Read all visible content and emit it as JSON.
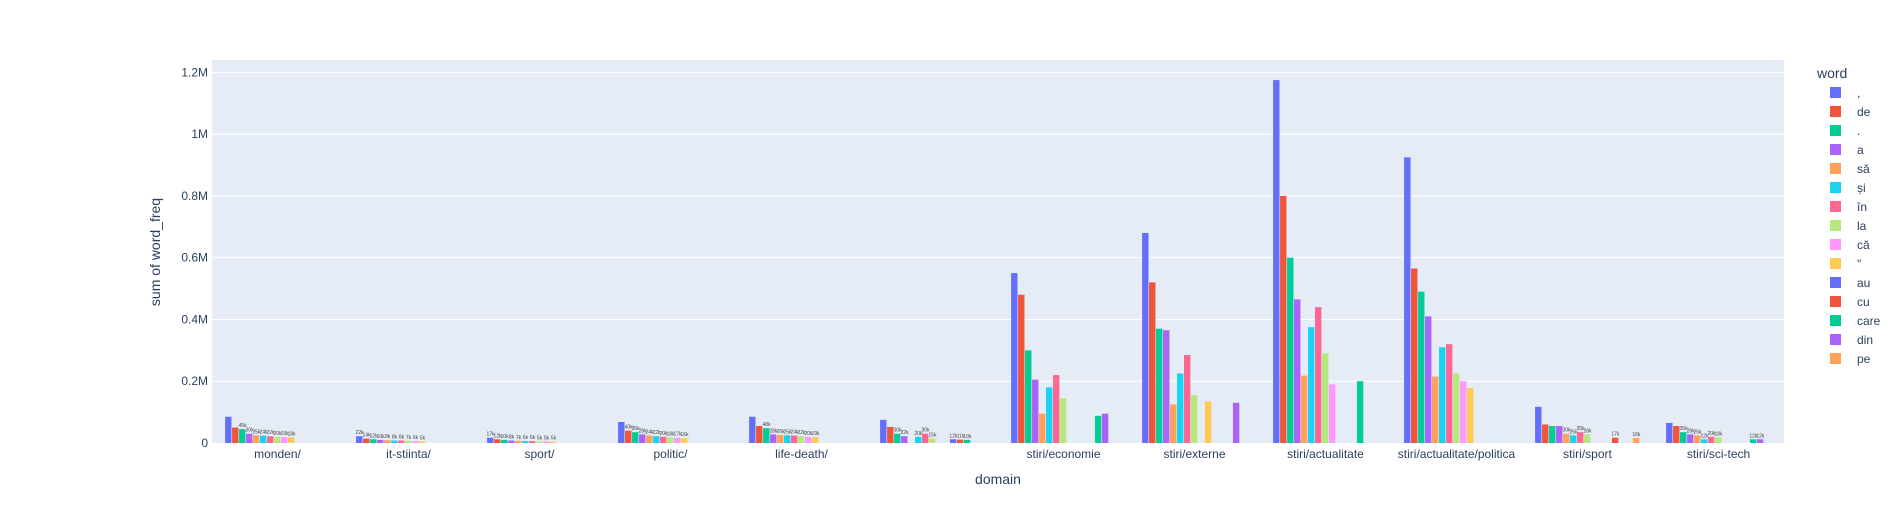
{
  "chart_data": {
    "type": "bar",
    "barmode": "group",
    "xlabel": "domain",
    "ylabel": "sum of word_freq",
    "ylim": [
      0,
      1240000
    ],
    "yticks": [
      {
        "value": 0,
        "label": "0"
      },
      {
        "value": 200000,
        "label": "0.2M"
      },
      {
        "value": 400000,
        "label": "0.4M"
      },
      {
        "value": 600000,
        "label": "0.6M"
      },
      {
        "value": 800000,
        "label": "0.8M"
      },
      {
        "value": 1000000,
        "label": "1M"
      },
      {
        "value": 1200000,
        "label": "1.2M"
      }
    ],
    "grid": true,
    "legend_title": "word",
    "legend_position": "right",
    "categories": [
      "monden/",
      "it-stiinta/",
      "sport/",
      "politic/",
      "life-death/",
      "",
      "stiri/economie",
      "stiri/externe",
      "stiri/actualitate",
      "stiri/actualitate/politica",
      "stiri/sport",
      "stiri/sci-tech"
    ],
    "series": [
      {
        "name": ",",
        "color": "#636efa",
        "values": [
          85000,
          22000,
          17000,
          68000,
          85000,
          75000,
          550000,
          680000,
          1175000,
          925000,
          117000,
          65000
        ]
      },
      {
        "name": "de",
        "color": "#EF553B",
        "values": [
          50000,
          14000,
          12000,
          40000,
          55000,
          52000,
          480000,
          520000,
          800000,
          565000,
          60000,
          55000
        ]
      },
      {
        "name": ".",
        "color": "#00cc96",
        "values": [
          45000,
          12000,
          10000,
          35000,
          48000,
          30000,
          300000,
          370000,
          600000,
          490000,
          55000,
          35000
        ]
      },
      {
        "name": "a",
        "color": "#ab63fa",
        "values": [
          30000,
          10000,
          8000,
          28000,
          28000,
          22000,
          205000,
          365000,
          465000,
          410000,
          55000,
          28000
        ]
      },
      {
        "name": "să",
        "color": "#FFA15A",
        "values": [
          25000,
          9000,
          7000,
          24000,
          26000,
          null,
          95000,
          125000,
          218000,
          215000,
          30000,
          25000
        ]
      },
      {
        "name": "și",
        "color": "#19d3f3",
        "values": [
          24000,
          8000,
          6000,
          22000,
          25000,
          20000,
          180000,
          225000,
          375000,
          310000,
          25000,
          12000
        ]
      },
      {
        "name": "în",
        "color": "#FF6692",
        "values": [
          22000,
          8000,
          6000,
          20000,
          24000,
          30000,
          220000,
          285000,
          440000,
          320000,
          35000,
          20000
        ]
      },
      {
        "name": "la",
        "color": "#B6E880",
        "values": [
          20000,
          7000,
          5000,
          18000,
          22000,
          15000,
          145000,
          155000,
          290000,
          225000,
          28000,
          18000
        ]
      },
      {
        "name": "că",
        "color": "#FF97FF",
        "values": [
          19000,
          6000,
          5000,
          17000,
          20000,
          null,
          null,
          null,
          190000,
          200000,
          null,
          null
        ]
      },
      {
        "name": "\"",
        "color": "#FECB52",
        "values": [
          18000,
          5000,
          4500,
          16000,
          19000,
          null,
          null,
          135000,
          null,
          178000,
          null,
          null
        ]
      },
      {
        "name": "au",
        "color": "#636efa",
        "values": [
          null,
          null,
          null,
          null,
          null,
          12000,
          null,
          null,
          null,
          null,
          null,
          null
        ]
      },
      {
        "name": "cu",
        "color": "#EF553B",
        "values": [
          null,
          null,
          null,
          null,
          null,
          11000,
          null,
          null,
          null,
          null,
          17000,
          null
        ]
      },
      {
        "name": "care",
        "color": "#00cc96",
        "values": [
          null,
          null,
          null,
          null,
          null,
          10000,
          88000,
          null,
          200000,
          null,
          null,
          12000
        ]
      },
      {
        "name": "din",
        "color": "#ab63fa",
        "values": [
          null,
          null,
          null,
          null,
          null,
          null,
          95000,
          130000,
          null,
          null,
          null,
          12000
        ]
      },
      {
        "name": "pe",
        "color": "#FFA15A",
        "values": [
          null,
          null,
          null,
          null,
          null,
          null,
          null,
          null,
          null,
          null,
          16000,
          null
        ]
      }
    ]
  }
}
